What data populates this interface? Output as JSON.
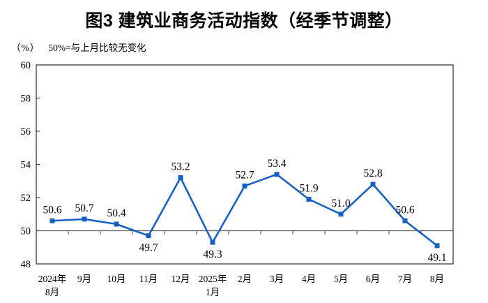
{
  "title": "图3 建筑业商务活动指数（经季节调整）",
  "subtitle": {
    "unit": "（%）",
    "note": "50%=与上月比较无变化"
  },
  "chart_data": {
    "type": "line",
    "categories": [
      "2024年|8月",
      "9月",
      "10月",
      "11月",
      "12月",
      "2025年|1月",
      "2月",
      "3月",
      "4月",
      "5月",
      "6月",
      "7月",
      "8月"
    ],
    "values": [
      50.6,
      50.7,
      50.4,
      49.7,
      53.2,
      49.3,
      52.7,
      53.4,
      51.9,
      51.0,
      52.8,
      50.6,
      49.1
    ],
    "labels_below_indices": [
      3,
      5,
      12
    ],
    "ylim": [
      48,
      60
    ],
    "ytick_step": 2,
    "reference_line": 50,
    "grid": "off",
    "legend": "none",
    "marker": "square",
    "colors": {
      "line": "#1661C7",
      "marker": "#1460C4",
      "reference_line": "#595959",
      "plot_border": "#3a3a3a",
      "text": "#000000"
    }
  }
}
